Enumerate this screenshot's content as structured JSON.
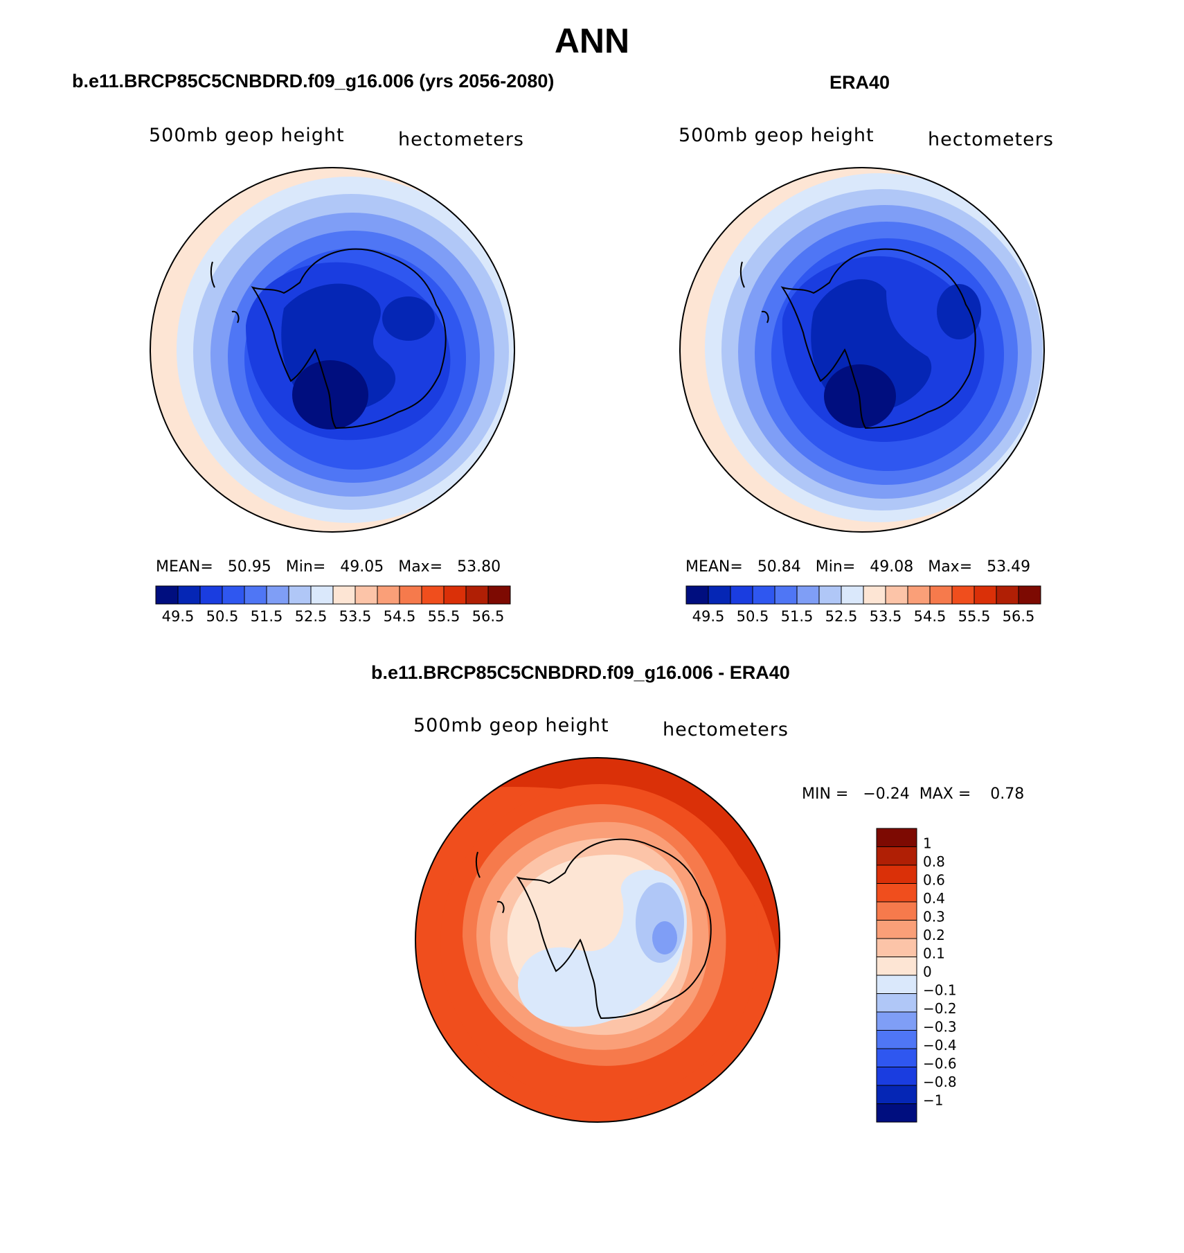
{
  "title": "ANN",
  "panels": [
    {
      "title": "b.e11.BRCP85C5CNBDRD.f09_g16.006 (yrs 2056-2080)",
      "variable": "500mb geop height",
      "units": "hectometers",
      "stats": {
        "mean_label": "MEAN=",
        "mean": "50.95",
        "min_label": "Min=",
        "min": "49.05",
        "max_label": "Max=",
        "max": "53.80"
      },
      "colorbar": {
        "colors": [
          "#000e7f",
          "#0526b5",
          "#1a3de0",
          "#2f57f0",
          "#4f76f5",
          "#7f9ef6",
          "#b0c7f7",
          "#dae8fb",
          "#fde5d4",
          "#fcc4a8",
          "#fa9f78",
          "#f67a4c",
          "#f04e1d",
          "#da3008",
          "#b01f05",
          "#7d0a02"
        ],
        "labels": [
          "49.5",
          "50.5",
          "51.5",
          "52.5",
          "53.5",
          "54.5",
          "55.5",
          "56.5"
        ]
      }
    },
    {
      "title": "ERA40",
      "variable": "500mb geop height",
      "units": "hectometers",
      "stats": {
        "mean_label": "MEAN=",
        "mean": "50.84",
        "min_label": "Min=",
        "min": "49.08",
        "max_label": "Max=",
        "max": "53.49"
      },
      "colorbar": {
        "colors": [
          "#000e7f",
          "#0526b5",
          "#1a3de0",
          "#2f57f0",
          "#4f76f5",
          "#7f9ef6",
          "#b0c7f7",
          "#dae8fb",
          "#fde5d4",
          "#fcc4a8",
          "#fa9f78",
          "#f67a4c",
          "#f04e1d",
          "#da3008",
          "#b01f05",
          "#7d0a02"
        ],
        "labels": [
          "49.5",
          "50.5",
          "51.5",
          "52.5",
          "53.5",
          "54.5",
          "55.5",
          "56.5"
        ]
      }
    },
    {
      "title": "b.e11.BRCP85C5CNBDRD.f09_g16.006 - ERA40",
      "variable": "500mb geop height",
      "units": "hectometers",
      "stats": {
        "min_label": "MIN =",
        "min": "−0.24",
        "max_label": "MAX =",
        "max": "0.78"
      },
      "colorbar": {
        "colors": [
          "#7d0a02",
          "#b01f05",
          "#da3008",
          "#f04e1d",
          "#f67a4c",
          "#fa9f78",
          "#fcc4a8",
          "#fde5d4",
          "#dae8fb",
          "#b0c7f7",
          "#7f9ef6",
          "#4f76f5",
          "#2f57f0",
          "#1a3de0",
          "#0526b5",
          "#000e7f"
        ],
        "labels": [
          "1",
          "0.8",
          "0.6",
          "0.4",
          "0.3",
          "0.2",
          "0.1",
          "0",
          "−0.1",
          "−0.2",
          "−0.3",
          "−0.4",
          "−0.6",
          "−0.8",
          "−1"
        ]
      }
    }
  ],
  "colors": {
    "ice_blue": "#000e7f",
    "deep_red": "#7d0a02",
    "coast": "#000000"
  }
}
